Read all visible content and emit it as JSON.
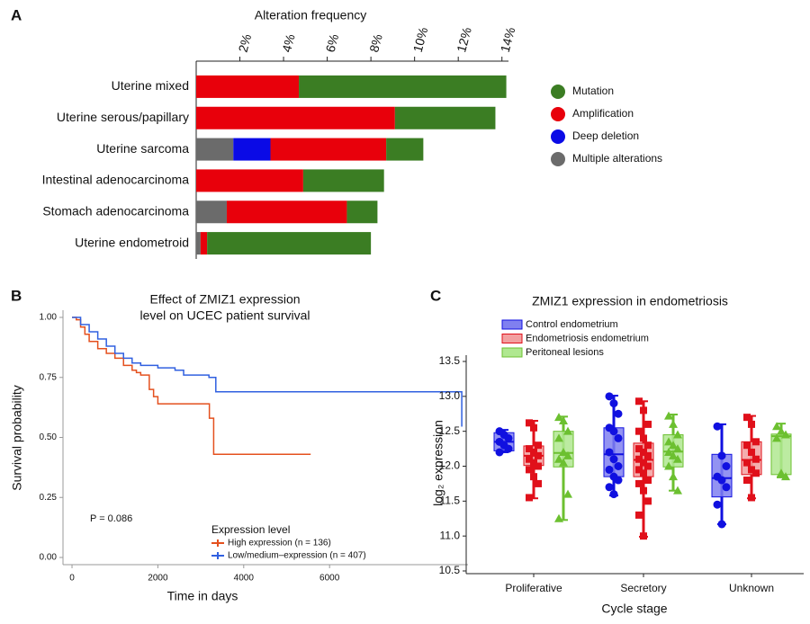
{
  "chart_data": [
    {
      "type": "bar",
      "panel": "A",
      "title": "Alteration frequency",
      "categories": [
        "Uterine mixed",
        "Uterine serous/papillary",
        "Uterine sarcoma",
        "Intestinal adenocarcinoma",
        "Stomach  adenocarcinoma",
        "Uterine endometroid"
      ],
      "series": [
        {
          "name": "Mutation",
          "color": "#3b7d23",
          "values": [
            9.5,
            4.6,
            1.7,
            3.7,
            1.4,
            7.5
          ]
        },
        {
          "name": "Amplification",
          "color": "#e8000b",
          "values": [
            4.7,
            9.1,
            5.3,
            4.9,
            5.5,
            0.3
          ]
        },
        {
          "name": "Deep deletion",
          "color": "#0a0ae6",
          "values": [
            0,
            0,
            1.7,
            0,
            0,
            0
          ]
        },
        {
          "name": "Multiple alterations",
          "color": "#6b6b6b",
          "values": [
            0,
            0,
            1.7,
            0,
            1.4,
            0.2
          ]
        }
      ],
      "xlim": [
        0,
        14.3
      ],
      "xticks": [
        {
          "value": 2,
          "label": "2%"
        },
        {
          "value": 4,
          "label": "4%"
        },
        {
          "value": 6,
          "label": "6%"
        },
        {
          "value": 8,
          "label": "8%"
        },
        {
          "value": 10,
          "label": "10%"
        },
        {
          "value": 12,
          "label": "12%"
        },
        {
          "value": 14,
          "label": "14%"
        }
      ]
    },
    {
      "type": "line",
      "panel": "B",
      "title": [
        "Effect of ZMIZ1 expression",
        "level on UCEC patient survival"
      ],
      "x_label": "Time in days",
      "y_label": "Survival probability",
      "annotation": "P = 0.086",
      "legend_title": "Expression level",
      "series": [
        {
          "name": "High expression (n = 136)",
          "color": "#e4501e",
          "x": [
            0,
            100,
            200,
            300,
            400,
            600,
            800,
            1000,
            1200,
            1400,
            1500,
            1600,
            1800,
            1900,
            2000,
            3000,
            3200,
            3300,
            5560
          ],
          "values": [
            1.0,
            0.99,
            0.96,
            0.93,
            0.9,
            0.87,
            0.85,
            0.83,
            0.8,
            0.78,
            0.77,
            0.76,
            0.7,
            0.67,
            0.64,
            0.64,
            0.58,
            0.43,
            0.43
          ]
        },
        {
          "name": "Low/medium–expression (n = 407)",
          "color": "#3060e0",
          "x": [
            0,
            200,
            400,
            600,
            800,
            1000,
            1200,
            1400,
            1600,
            2000,
            2400,
            2600,
            3190,
            3350,
            9080
          ],
          "values": [
            1.0,
            0.97,
            0.94,
            0.91,
            0.88,
            0.85,
            0.83,
            0.81,
            0.8,
            0.79,
            0.78,
            0.76,
            0.75,
            0.69,
            0.545
          ]
        }
      ],
      "xlim": [
        -210,
        9225
      ],
      "xticks": [
        0,
        2000,
        4000,
        6000
      ],
      "ylim": [
        -0.03,
        1.03
      ],
      "yticks": [
        {
          "value": 0,
          "label": "0.00"
        },
        {
          "value": 0.25,
          "label": "0.25"
        },
        {
          "value": 0.5,
          "label": "0.50"
        },
        {
          "value": 0.75,
          "label": "0.75"
        },
        {
          "value": 1,
          "label": "1.00"
        }
      ]
    },
    {
      "type": "box",
      "panel": "C",
      "title": "ZMIZ1 expression in endometriosis",
      "x_label": "Cycle stage",
      "y_label": "log₂ expression",
      "categories": [
        "Proliferative",
        "Secretory",
        "Unknown"
      ],
      "series": [
        {
          "name": "Control endometrium",
          "color": "#1010e0",
          "fill": "#8080f0",
          "marker": "circle",
          "boxes": [
            {
              "min": 12.2,
              "q1": 12.22,
              "median": 12.35,
              "q3": 12.48,
              "max": 12.52
            },
            {
              "min": 11.58,
              "q1": 11.85,
              "median": 12.17,
              "q3": 12.55,
              "max": 13.01
            },
            {
              "min": 11.17,
              "q1": 11.56,
              "median": 11.83,
              "q3": 12.17,
              "max": 12.6
            }
          ],
          "points": [
            [
              12.5,
              12.45,
              12.4,
              12.35,
              12.3,
              12.25,
              12.2
            ],
            [
              13.0,
              12.9,
              12.75,
              12.55,
              12.5,
              12.4,
              12.2,
              12.1,
              12.0,
              11.95,
              11.85,
              11.8,
              11.7,
              11.6
            ],
            [
              12.57,
              12.15,
              12.0,
              11.85,
              11.8,
              11.7,
              11.45,
              11.17
            ]
          ]
        },
        {
          "name": "Endometriosis endometrium",
          "color": "#e0101a",
          "fill": "#f2a0a0",
          "marker": "square",
          "boxes": [
            {
              "min": 11.54,
              "q1": 12.01,
              "median": 12.15,
              "q3": 12.29,
              "max": 12.65
            },
            {
              "min": 10.99,
              "q1": 11.85,
              "median": 12.09,
              "q3": 12.33,
              "max": 12.93
            },
            {
              "min": 11.54,
              "q1": 11.88,
              "median": 12.09,
              "q3": 12.35,
              "max": 12.72
            }
          ],
          "points": [
            [
              12.62,
              12.55,
              12.3,
              12.25,
              12.2,
              12.15,
              12.1,
              12.05,
              12.0,
              11.95,
              11.85,
              11.75,
              11.55
            ],
            [
              12.93,
              12.8,
              12.6,
              12.5,
              12.4,
              12.3,
              12.25,
              12.2,
              12.15,
              12.1,
              12.05,
              12.0,
              11.95,
              11.9,
              11.8,
              11.75,
              11.65,
              11.5,
              11.3,
              11.0
            ],
            [
              12.7,
              12.6,
              12.35,
              12.3,
              12.2,
              12.1,
              12.05,
              11.95,
              11.9,
              11.8,
              11.55
            ]
          ]
        },
        {
          "name": "Peritoneal lesions",
          "color": "#6cc030",
          "fill": "#b0e890",
          "marker": "triangle",
          "boxes": [
            {
              "min": 11.23,
              "q1": 11.99,
              "median": 12.19,
              "q3": 12.5,
              "max": 12.71
            },
            {
              "min": 11.65,
              "q1": 11.99,
              "median": 12.21,
              "q3": 12.45,
              "max": 12.74
            },
            {
              "min": 11.84,
              "q1": 11.88,
              "median": 12.43,
              "q3": 12.46,
              "max": 12.61
            }
          ],
          "points": [
            [
              12.7,
              12.65,
              12.5,
              12.4,
              12.2,
              12.15,
              12.1,
              12.05,
              11.6,
              11.25
            ],
            [
              12.72,
              12.6,
              12.45,
              12.35,
              12.3,
              12.25,
              12.2,
              12.15,
              12.1,
              12.0,
              11.85,
              11.65
            ],
            [
              12.57,
              12.5,
              12.45,
              12.4,
              11.9,
              11.85
            ]
          ]
        }
      ],
      "ylim": [
        10.5,
        13.5
      ],
      "yticks": [
        10.5,
        {
          "value": 11,
          "label": "11.0"
        },
        11.5,
        {
          "value": 12,
          "label": "12.0"
        },
        12.5,
        {
          "value": 13,
          "label": "13.0"
        },
        13.5
      ]
    }
  ]
}
